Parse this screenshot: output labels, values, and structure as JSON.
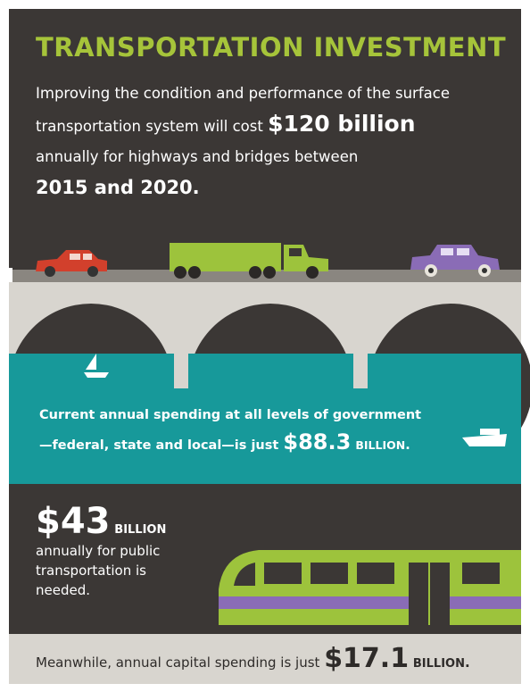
{
  "header": {
    "title": "TRANSPORTATION INVESTMENT"
  },
  "intro": {
    "text_1": "Improving the condition and performance of the surface transportation system will cost",
    "amount": "$120 billion",
    "text_2": "annually for highways and bridges between",
    "period": "2015 and 2020."
  },
  "water": {
    "text": "Current annual spending at all levels of government—federal, state and local—is just",
    "amount": "$88.3",
    "unit": "BILLION",
    "end": "."
  },
  "transit": {
    "amount": "$43",
    "unit": "BILLION",
    "text": "annually for public transportation is needed."
  },
  "footer": {
    "text": "Meanwhile, annual capital spending is just",
    "amount": "$17.1",
    "unit": "BILLION",
    "end": "."
  }
}
